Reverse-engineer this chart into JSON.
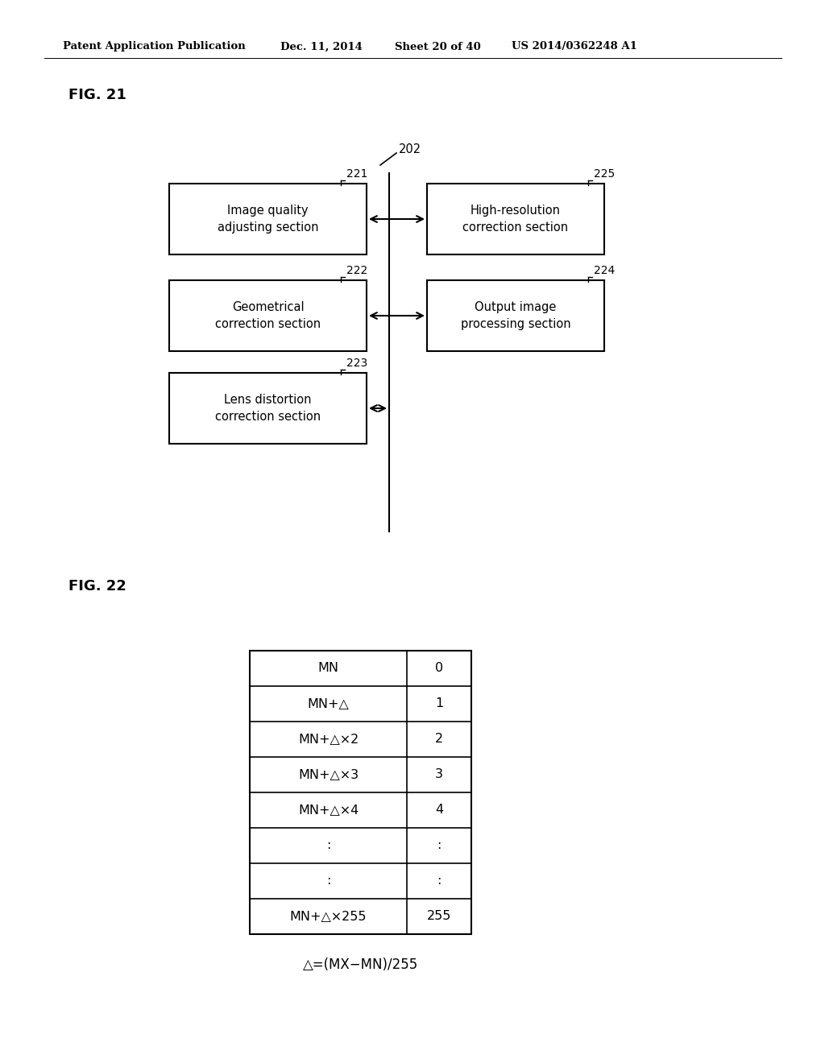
{
  "bg_color": "#ffffff",
  "header_text": "Patent Application Publication",
  "header_date": "Dec. 11, 2014",
  "header_sheet": "Sheet 20 of 40",
  "header_patent": "US 2014/0362248 A1",
  "fig21_label": "FIG. 21",
  "fig22_label": "FIG. 22",
  "block_202_label": "202",
  "block_221_label": "221",
  "block_222_label": "222",
  "block_223_label": "223",
  "block_224_label": "224",
  "block_225_label": "225",
  "box_221_text": "Image quality\nadjusting section",
  "box_222_text": "Geometrical\ncorrection section",
  "box_223_text": "Lens distortion\ncorrection section",
  "box_224_text": "Output image\nprocessing section",
  "box_225_text": "High-resolution\ncorrection section",
  "table_rows": [
    [
      "MN",
      "0"
    ],
    [
      "MN+△",
      "1"
    ],
    [
      "MN+△×2",
      "2"
    ],
    [
      "MN+△×3",
      "3"
    ],
    [
      "MN+△×4",
      "4"
    ],
    [
      ":",
      ":"
    ],
    [
      ":",
      ":"
    ],
    [
      "MN+△×255",
      "255"
    ]
  ],
  "formula": "△=(MX−MN)/255"
}
